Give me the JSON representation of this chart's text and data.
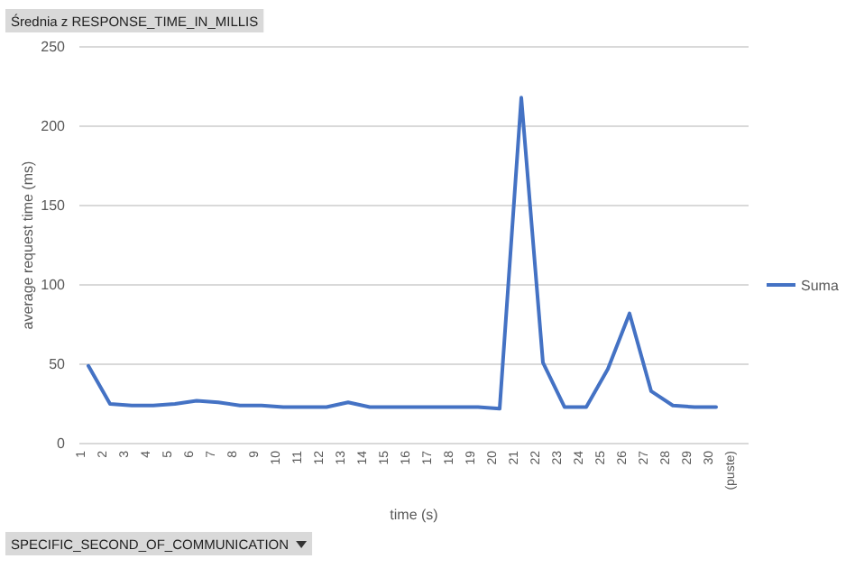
{
  "chart_data": {
    "type": "line",
    "xlabel": "time (s)",
    "ylabel": "average request time (ms)",
    "categories": [
      "1",
      "2",
      "3",
      "4",
      "5",
      "6",
      "7",
      "8",
      "9",
      "10",
      "11",
      "12",
      "13",
      "14",
      "15",
      "16",
      "17",
      "18",
      "19",
      "20",
      "21",
      "22",
      "23",
      "24",
      "25",
      "26",
      "27",
      "28",
      "29",
      "30",
      "(puste)"
    ],
    "series": [
      {
        "name": "Suma",
        "color": "#4472c4",
        "values": [
          49,
          25,
          24,
          24,
          25,
          27,
          26,
          24,
          24,
          23,
          23,
          23,
          26,
          23,
          23,
          23,
          23,
          23,
          23,
          22,
          218,
          51,
          23,
          23,
          47,
          82,
          33,
          24,
          23,
          23,
          null
        ]
      }
    ],
    "ylim": [
      0,
      250
    ],
    "yticks": [
      0,
      50,
      100,
      150,
      200,
      250
    ],
    "grid": "y",
    "legend": "right",
    "marker": "none",
    "line_style": "solid",
    "annotations": [
      "Średnia z RESPONSE_TIME_IN_MILLIS",
      "SPECIFIC_SECOND_OF_COMMUNICATION"
    ]
  }
}
